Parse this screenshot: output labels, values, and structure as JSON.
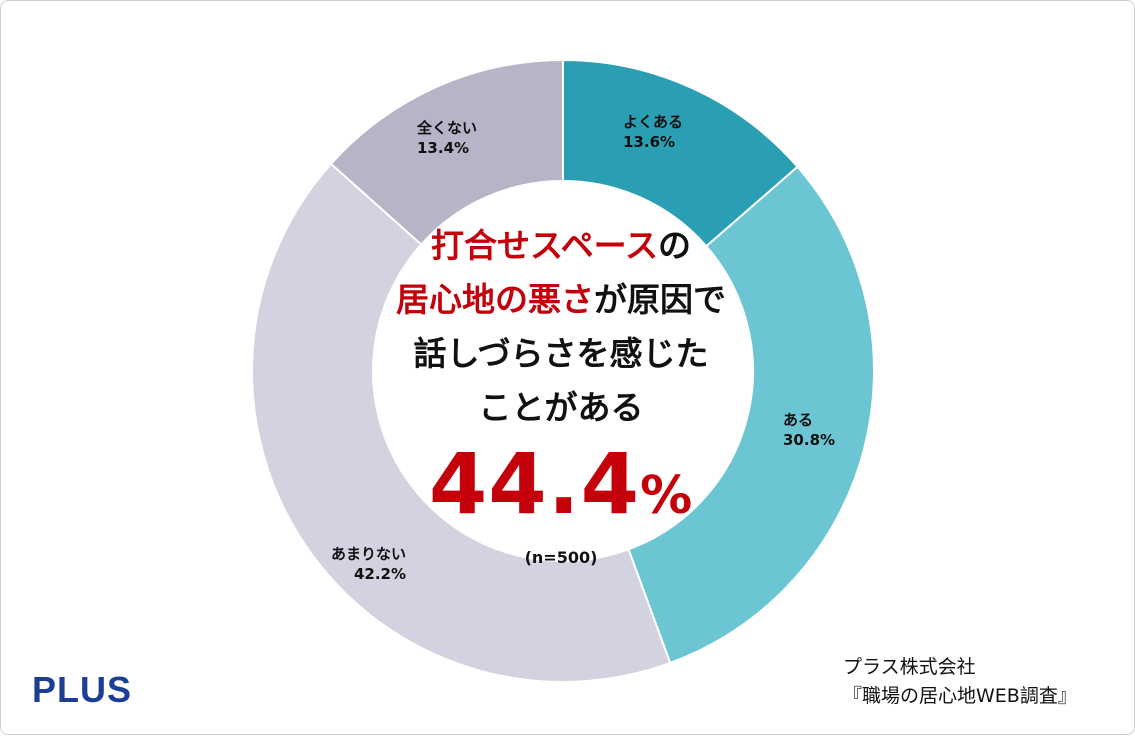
{
  "chart_data": {
    "type": "pie",
    "variant": "donut",
    "slices": [
      {
        "label": "よくある",
        "value": 13.6,
        "display": "13.6%",
        "color": "#2a9fb3"
      },
      {
        "label": "ある",
        "value": 30.8,
        "display": "30.8%",
        "color": "#6cc5d3"
      },
      {
        "label": "あまりない",
        "value": 42.2,
        "display": "42.2%",
        "color": "#d2d2e0"
      },
      {
        "label": "全くない",
        "value": 13.4,
        "display": "13.4%",
        "color": "#b5b5c7"
      }
    ],
    "center": {
      "line1_red": "打合せスペース",
      "line1_rest": "の",
      "line2_red": "居心地の悪さ",
      "line2_rest": "が原因で",
      "line3": "話しづらさを感じた",
      "line4": "ことがある",
      "value_number": "44.4",
      "value_unit": "%",
      "sample": "(n=500)"
    }
  },
  "footer": {
    "logo": "PLUS",
    "source_company": "プラス株式会社",
    "source_survey": "『職場の居心地WEB調査』"
  }
}
